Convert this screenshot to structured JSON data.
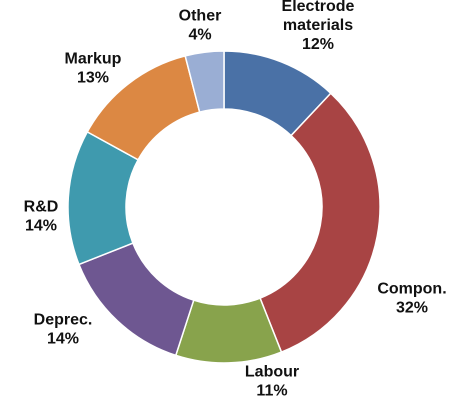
{
  "chart_data": {
    "type": "pie",
    "donut": true,
    "title": "",
    "slices": [
      {
        "label": [
          "Electrode",
          "materials"
        ],
        "value": 12,
        "value_label": "12%",
        "color": "#4A71A6"
      },
      {
        "label": [
          "Compon."
        ],
        "value": 32,
        "value_label": "32%",
        "color": "#A84444"
      },
      {
        "label": [
          "Labour"
        ],
        "value": 11,
        "value_label": "11%",
        "color": "#88A34C"
      },
      {
        "label": [
          "Deprec."
        ],
        "value": 14,
        "value_label": "14%",
        "color": "#6E5791"
      },
      {
        "label": [
          "R&D"
        ],
        "value": 14,
        "value_label": "14%",
        "color": "#3F9AAE"
      },
      {
        "label": [
          "Markup"
        ],
        "value": 13,
        "value_label": "13%",
        "color": "#DC8843"
      },
      {
        "label": [
          "Other"
        ],
        "value": 4,
        "value_label": "4%",
        "color": "#9AAED4"
      }
    ],
    "start_angle_deg": 0,
    "direction": "clockwise",
    "legend": "none"
  }
}
